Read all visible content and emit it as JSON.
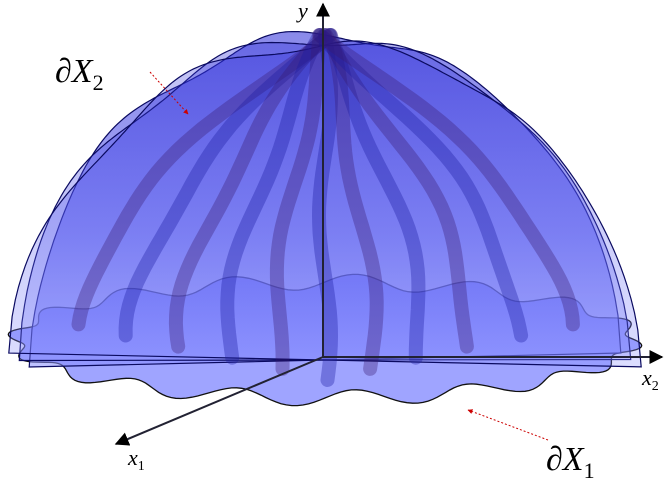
{
  "axes": {
    "y": "y",
    "x1": {
      "text": "x",
      "sub": "1"
    },
    "x2": {
      "text": "x",
      "sub": "2"
    }
  },
  "annotations": [
    {
      "text": "∂X",
      "sub": "2"
    },
    {
      "text": "∂X",
      "sub": "1"
    }
  ]
}
